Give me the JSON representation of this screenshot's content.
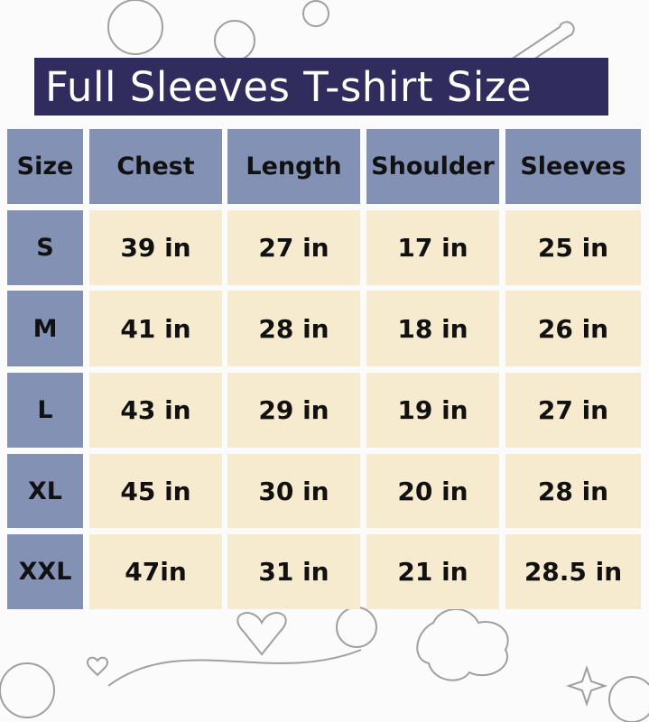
{
  "title": "Full Sleeves T-shirt Size",
  "colors": {
    "title_bg": "#302c5d",
    "header_bg": "#8391b5",
    "cell_bg": "#f6ebcf",
    "background": "#fbfbfb"
  },
  "table": {
    "headers": [
      "Size",
      "Chest",
      "Length",
      "Shoulder",
      "Sleeves"
    ],
    "rows": [
      [
        "S",
        "39 in",
        "27 in",
        "17 in",
        "25 in"
      ],
      [
        "M",
        "41 in",
        "28 in",
        "18 in",
        "26 in"
      ],
      [
        "L",
        "43 in",
        "29 in",
        "19 in",
        "27 in"
      ],
      [
        "XL",
        "45 in",
        "30 in",
        "20 in",
        "28 in"
      ],
      [
        "XXL",
        "47in",
        "31 in",
        "21 in",
        "28.5 in"
      ]
    ]
  }
}
